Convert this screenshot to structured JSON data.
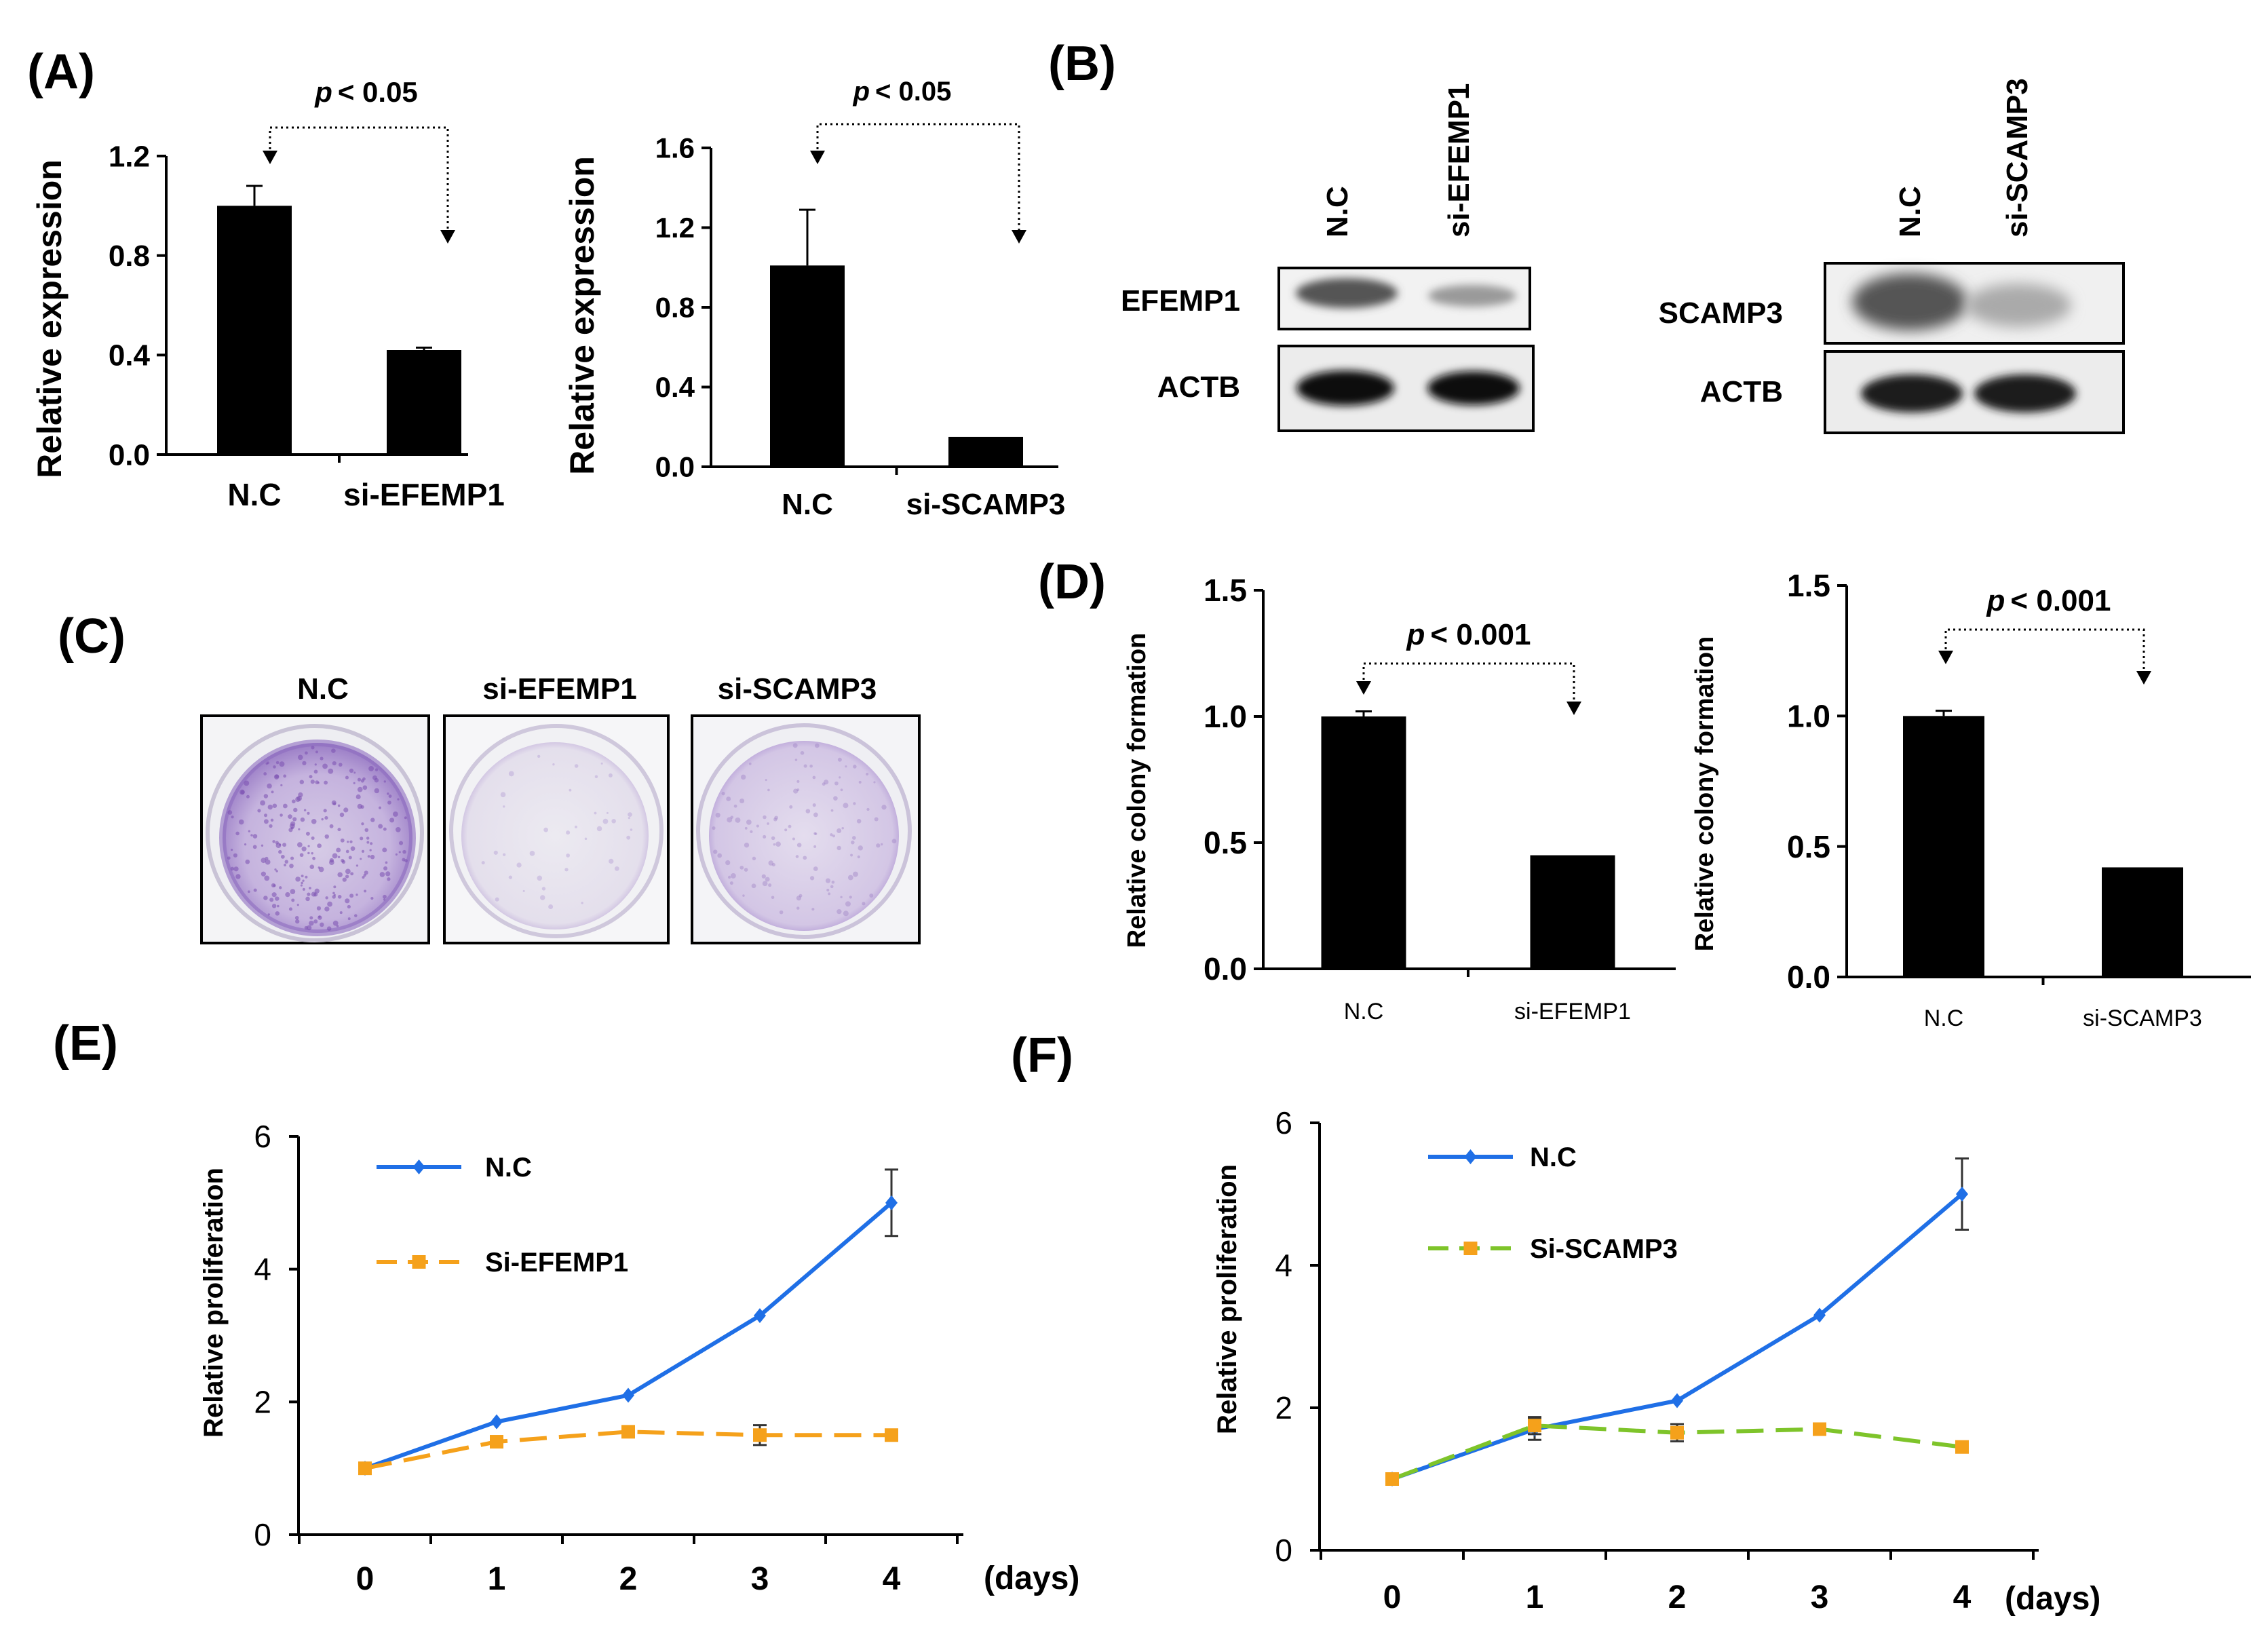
{
  "panels": {
    "A": "(A)",
    "B": "(B)",
    "C": "(C)",
    "D": "(D)",
    "E": "(E)",
    "F": "(F)"
  },
  "pvalues": {
    "a1": "< 0.05",
    "a2": "< 0.05",
    "d1": "< 0.001",
    "d2": "< 0.001",
    "p_symbol": "p"
  },
  "colors": {
    "bar": "#000000",
    "nc_line": "#1f6fe6",
    "efemp1_line": "#f5a11b",
    "scamp3_line": "#7ec42a",
    "square_marker": "#f5a11b",
    "dish_purple": "#9b7cc4"
  },
  "blots": {
    "b1": {
      "lanes": [
        "N.C",
        "si-EFEMP1"
      ],
      "rows": [
        "EFEMP1",
        "ACTB"
      ]
    },
    "b2": {
      "lanes": [
        "N.C",
        "si-SCAMP3"
      ],
      "rows": [
        "SCAMP3",
        "ACTB"
      ]
    }
  },
  "colony_images": {
    "labels": [
      "N.C",
      "si-EFEMP1",
      "si-SCAMP3"
    ]
  },
  "chart_data": [
    {
      "id": "A1",
      "type": "bar",
      "categories": [
        "N.C",
        "si-EFEMP1"
      ],
      "values": [
        1.0,
        0.42
      ],
      "errors": [
        0.08,
        0.01
      ],
      "ylabel": "Relative expression",
      "ylim": [
        0,
        1.2
      ],
      "yticks": [
        "0.0",
        "0.4",
        "0.8",
        "1.2"
      ]
    },
    {
      "id": "A2",
      "type": "bar",
      "categories": [
        "N.C",
        "si-SCAMP3"
      ],
      "values": [
        1.01,
        0.15
      ],
      "errors": [
        0.28,
        0.0
      ],
      "ylabel": "Relative expression",
      "ylim": [
        0,
        1.6
      ],
      "yticks": [
        "0.0",
        "0.4",
        "0.8",
        "1.2",
        "1.6"
      ]
    },
    {
      "id": "D1",
      "type": "bar",
      "categories": [
        "N.C",
        "si-EFEMP1"
      ],
      "values": [
        1.0,
        0.45
      ],
      "errors": [
        0.02,
        0.0
      ],
      "ylabel": "Relative colony formation",
      "ylim": [
        0,
        1.5
      ],
      "yticks": [
        "0.0",
        "0.5",
        "1.0",
        "1.5"
      ]
    },
    {
      "id": "D2",
      "type": "bar",
      "categories": [
        "N.C",
        "si-SCAMP3"
      ],
      "values": [
        1.0,
        0.42
      ],
      "errors": [
        0.02,
        0.0
      ],
      "ylabel": "Relative colony formation",
      "ylim": [
        0,
        1.5
      ],
      "yticks": [
        "0.0",
        "0.5",
        "1.0",
        "1.5"
      ]
    },
    {
      "id": "E",
      "type": "line",
      "x": [
        0,
        1,
        2,
        3,
        4
      ],
      "xticks": [
        "0",
        "1",
        "2",
        "3",
        "4"
      ],
      "xunit": "(days)",
      "ylabel": "Relative proliferation",
      "ylim": [
        0,
        6
      ],
      "yticks": [
        "0",
        "2",
        "4",
        "6"
      ],
      "series": [
        {
          "name": "N.C",
          "values": [
            1.0,
            1.7,
            2.1,
            3.3,
            5.0
          ],
          "errors": [
            0.05,
            0.05,
            0.05,
            0.05,
            0.5
          ]
        },
        {
          "name": "Si-EFEMP1",
          "values": [
            1.0,
            1.4,
            1.55,
            1.5,
            1.5
          ],
          "errors": [
            0.05,
            0.05,
            0.05,
            0.15,
            0.05
          ]
        }
      ]
    },
    {
      "id": "F",
      "type": "line",
      "x": [
        0,
        1,
        2,
        3,
        4
      ],
      "xticks": [
        "0",
        "1",
        "2",
        "3",
        "4"
      ],
      "xunit": "(days)",
      "ylabel": "Relative proliferation",
      "ylim": [
        0,
        6
      ],
      "yticks": [
        "0",
        "2",
        "4",
        "6"
      ],
      "series": [
        {
          "name": "N.C",
          "values": [
            1.0,
            1.7,
            2.1,
            3.3,
            5.0
          ],
          "errors": [
            0.05,
            0.15,
            0.05,
            0.05,
            0.5
          ]
        },
        {
          "name": "Si-SCAMP3",
          "values": [
            1.0,
            1.75,
            1.65,
            1.7,
            1.45
          ],
          "errors": [
            0.05,
            0.12,
            0.12,
            0.05,
            0.05
          ]
        }
      ]
    }
  ]
}
